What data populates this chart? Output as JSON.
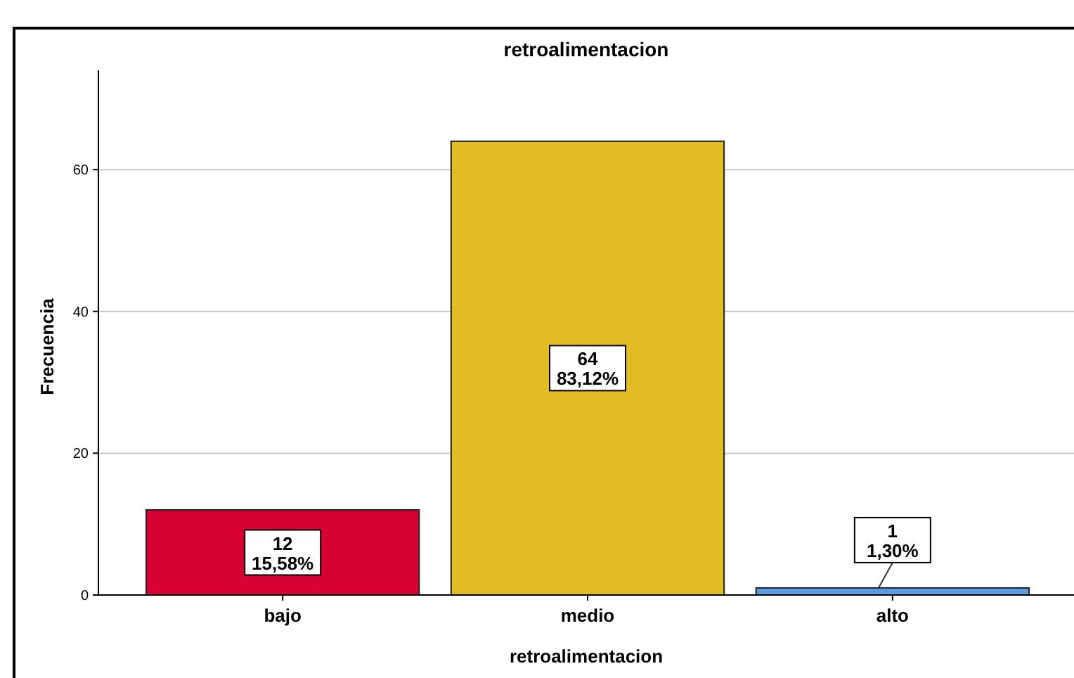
{
  "chart_data": {
    "type": "bar",
    "title": "retroalimentacion",
    "xlabel": "retroalimentacion",
    "ylabel": "Frecuencia",
    "categories": [
      "bajo",
      "medio",
      "alto"
    ],
    "values": [
      12,
      64,
      1
    ],
    "colors": [
      "#d70032",
      "#e1bc22",
      "#5b9be0"
    ],
    "value_labels": [
      "12\n15,58%",
      "64\n83,12%",
      "1\n1,30%"
    ],
    "ylim": [
      0,
      74
    ],
    "yticks": [
      0,
      20,
      40,
      60
    ],
    "grid": "y"
  }
}
